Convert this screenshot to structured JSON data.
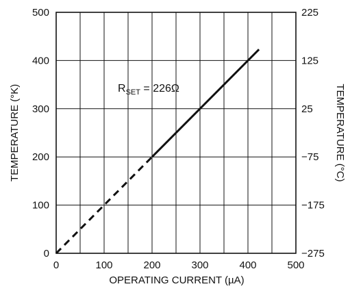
{
  "chart_data": {
    "type": "line",
    "xlabel": "OPERATING CURRENT (µA)",
    "ylabel_left": "TEMPERATURE (°K)",
    "ylabel_right": "TEMPERATURE (°C)",
    "xlim": [
      0,
      500
    ],
    "ylim_left": [
      0,
      500
    ],
    "ylim_right": [
      -275,
      225
    ],
    "x_ticks": [
      "0",
      "100",
      "200",
      "300",
      "400",
      "500"
    ],
    "y_ticks_left": [
      "0",
      "100",
      "200",
      "300",
      "400",
      "500"
    ],
    "y_ticks_right": [
      "−275",
      "−175",
      "−75",
      "25",
      "125",
      "225"
    ],
    "grid": true,
    "annotation": {
      "prefix": "R",
      "subscript": "SET",
      "suffix": " = 226Ω"
    },
    "series": [
      {
        "style": "dashed",
        "x": [
          0,
          200
        ],
        "y": [
          0,
          200
        ]
      },
      {
        "style": "solid",
        "x": [
          200,
          423
        ],
        "y": [
          200,
          423
        ]
      }
    ]
  }
}
